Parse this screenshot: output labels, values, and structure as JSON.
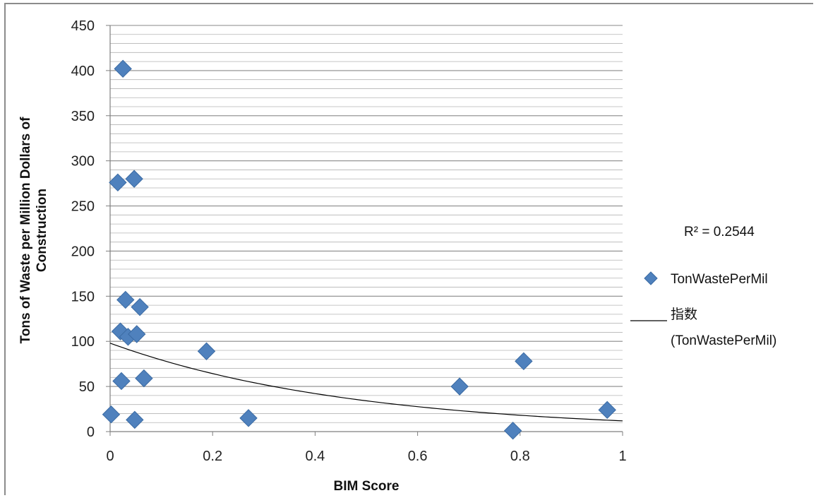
{
  "chart_data": {
    "type": "scatter",
    "title": "",
    "xlabel": "BIM Score",
    "ylabel": "Tons of Waste per Million Dollars of Construction",
    "xlim": [
      0,
      1
    ],
    "ylim": [
      0,
      450
    ],
    "x_ticks": [
      "0",
      "0.2",
      "0.4",
      "0.6",
      "0.8",
      "1"
    ],
    "y_ticks": [
      "0",
      "50",
      "100",
      "150",
      "200",
      "250",
      "300",
      "350",
      "400",
      "450"
    ],
    "y_major_step": 50,
    "y_minor_step": 10,
    "grid": "horizontal",
    "legend_position": "right",
    "series": [
      {
        "name": "TonWastePerMil",
        "marker": "diamond",
        "color": "#4f81bd",
        "points": [
          {
            "x": 0.025,
            "y": 402
          },
          {
            "x": 0.015,
            "y": 276
          },
          {
            "x": 0.047,
            "y": 280
          },
          {
            "x": 0.03,
            "y": 146
          },
          {
            "x": 0.058,
            "y": 138
          },
          {
            "x": 0.02,
            "y": 111
          },
          {
            "x": 0.035,
            "y": 105
          },
          {
            "x": 0.052,
            "y": 108
          },
          {
            "x": 0.188,
            "y": 89
          },
          {
            "x": 0.022,
            "y": 56
          },
          {
            "x": 0.066,
            "y": 59
          },
          {
            "x": 0.002,
            "y": 19
          },
          {
            "x": 0.048,
            "y": 13
          },
          {
            "x": 0.27,
            "y": 15
          },
          {
            "x": 0.682,
            "y": 50
          },
          {
            "x": 0.807,
            "y": 78
          },
          {
            "x": 0.786,
            "y": 1
          },
          {
            "x": 0.97,
            "y": 24
          }
        ]
      }
    ],
    "trendline": {
      "name": "指数 (TonWastePerMil)",
      "type": "exponential",
      "a": 98,
      "b": -2.11,
      "x_range": [
        0,
        1
      ],
      "color": "#000000",
      "r_squared_label": "R² = 0.2544"
    }
  },
  "legend": {
    "r_squared": "R² = 0.2544",
    "series_label": "TonWastePerMil",
    "trend_label_line1": "指数",
    "trend_label_line2": "(TonWastePerMil)"
  }
}
